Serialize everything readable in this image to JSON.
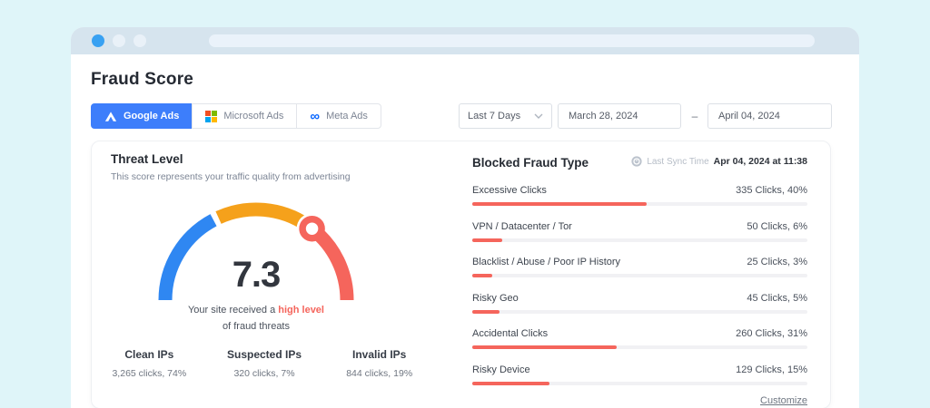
{
  "page": {
    "title": "Fraud Score"
  },
  "tabs": [
    {
      "label": "Google Ads",
      "active": true,
      "icon": "google-ads-icon"
    },
    {
      "label": "Microsoft Ads",
      "active": false,
      "icon": "microsoft-icon"
    },
    {
      "label": "Meta Ads",
      "active": false,
      "icon": "meta-icon"
    }
  ],
  "filters": {
    "range_label": "Last 7 Days",
    "start_date": "March 28, 2024",
    "separator": "–",
    "end_date": "April 04, 2024"
  },
  "threat": {
    "title": "Threat Level",
    "subtitle": "This score represents your traffic quality from advertising",
    "score": "7.3",
    "caption_prefix": "Your site received a ",
    "caption_highlight": "high level",
    "caption_line2": "of fraud threats",
    "gauge": {
      "scale_min": 0,
      "scale_max": 10,
      "value": 7.3,
      "segment_colors": {
        "low": "#2F87F2",
        "mid": "#F5A11B",
        "high": "#F5655C"
      }
    },
    "stats": [
      {
        "label": "Clean IPs",
        "value": "3,265 clicks, 74%"
      },
      {
        "label": "Suspected IPs",
        "value": "320 clicks, 7%"
      },
      {
        "label": "Invalid IPs",
        "value": "844 clicks, 19%"
      }
    ]
  },
  "blocked": {
    "title": "Blocked Fraud Type",
    "sync_label": "Last Sync Time",
    "sync_value": "Apr 04, 2024 at 11:38",
    "rows": [
      {
        "label": "Excessive Clicks",
        "value": "335 Clicks, 40%",
        "bar_pct": 52
      },
      {
        "label": "VPN / Datacenter / Tor",
        "value": "50 Clicks, 6%",
        "bar_pct": 9
      },
      {
        "label": "Blacklist / Abuse / Poor IP History",
        "value": "25 Clicks, 3%",
        "bar_pct": 6
      },
      {
        "label": "Risky Geo",
        "value": "45 Clicks, 5%",
        "bar_pct": 8
      },
      {
        "label": "Accidental Clicks",
        "value": "260 Clicks, 31%",
        "bar_pct": 43
      },
      {
        "label": "Risky Device",
        "value": "129 Clicks, 15%",
        "bar_pct": 23
      }
    ],
    "customize_label": "Customize"
  },
  "colors": {
    "accent_blue": "#3D7EFB",
    "gauge_blue": "#2F87F2",
    "gauge_orange": "#F5A11B",
    "alert_red": "#F5655C",
    "outer_bg": "#DFF5F9",
    "chrome_bg": "#D6E4EE"
  }
}
